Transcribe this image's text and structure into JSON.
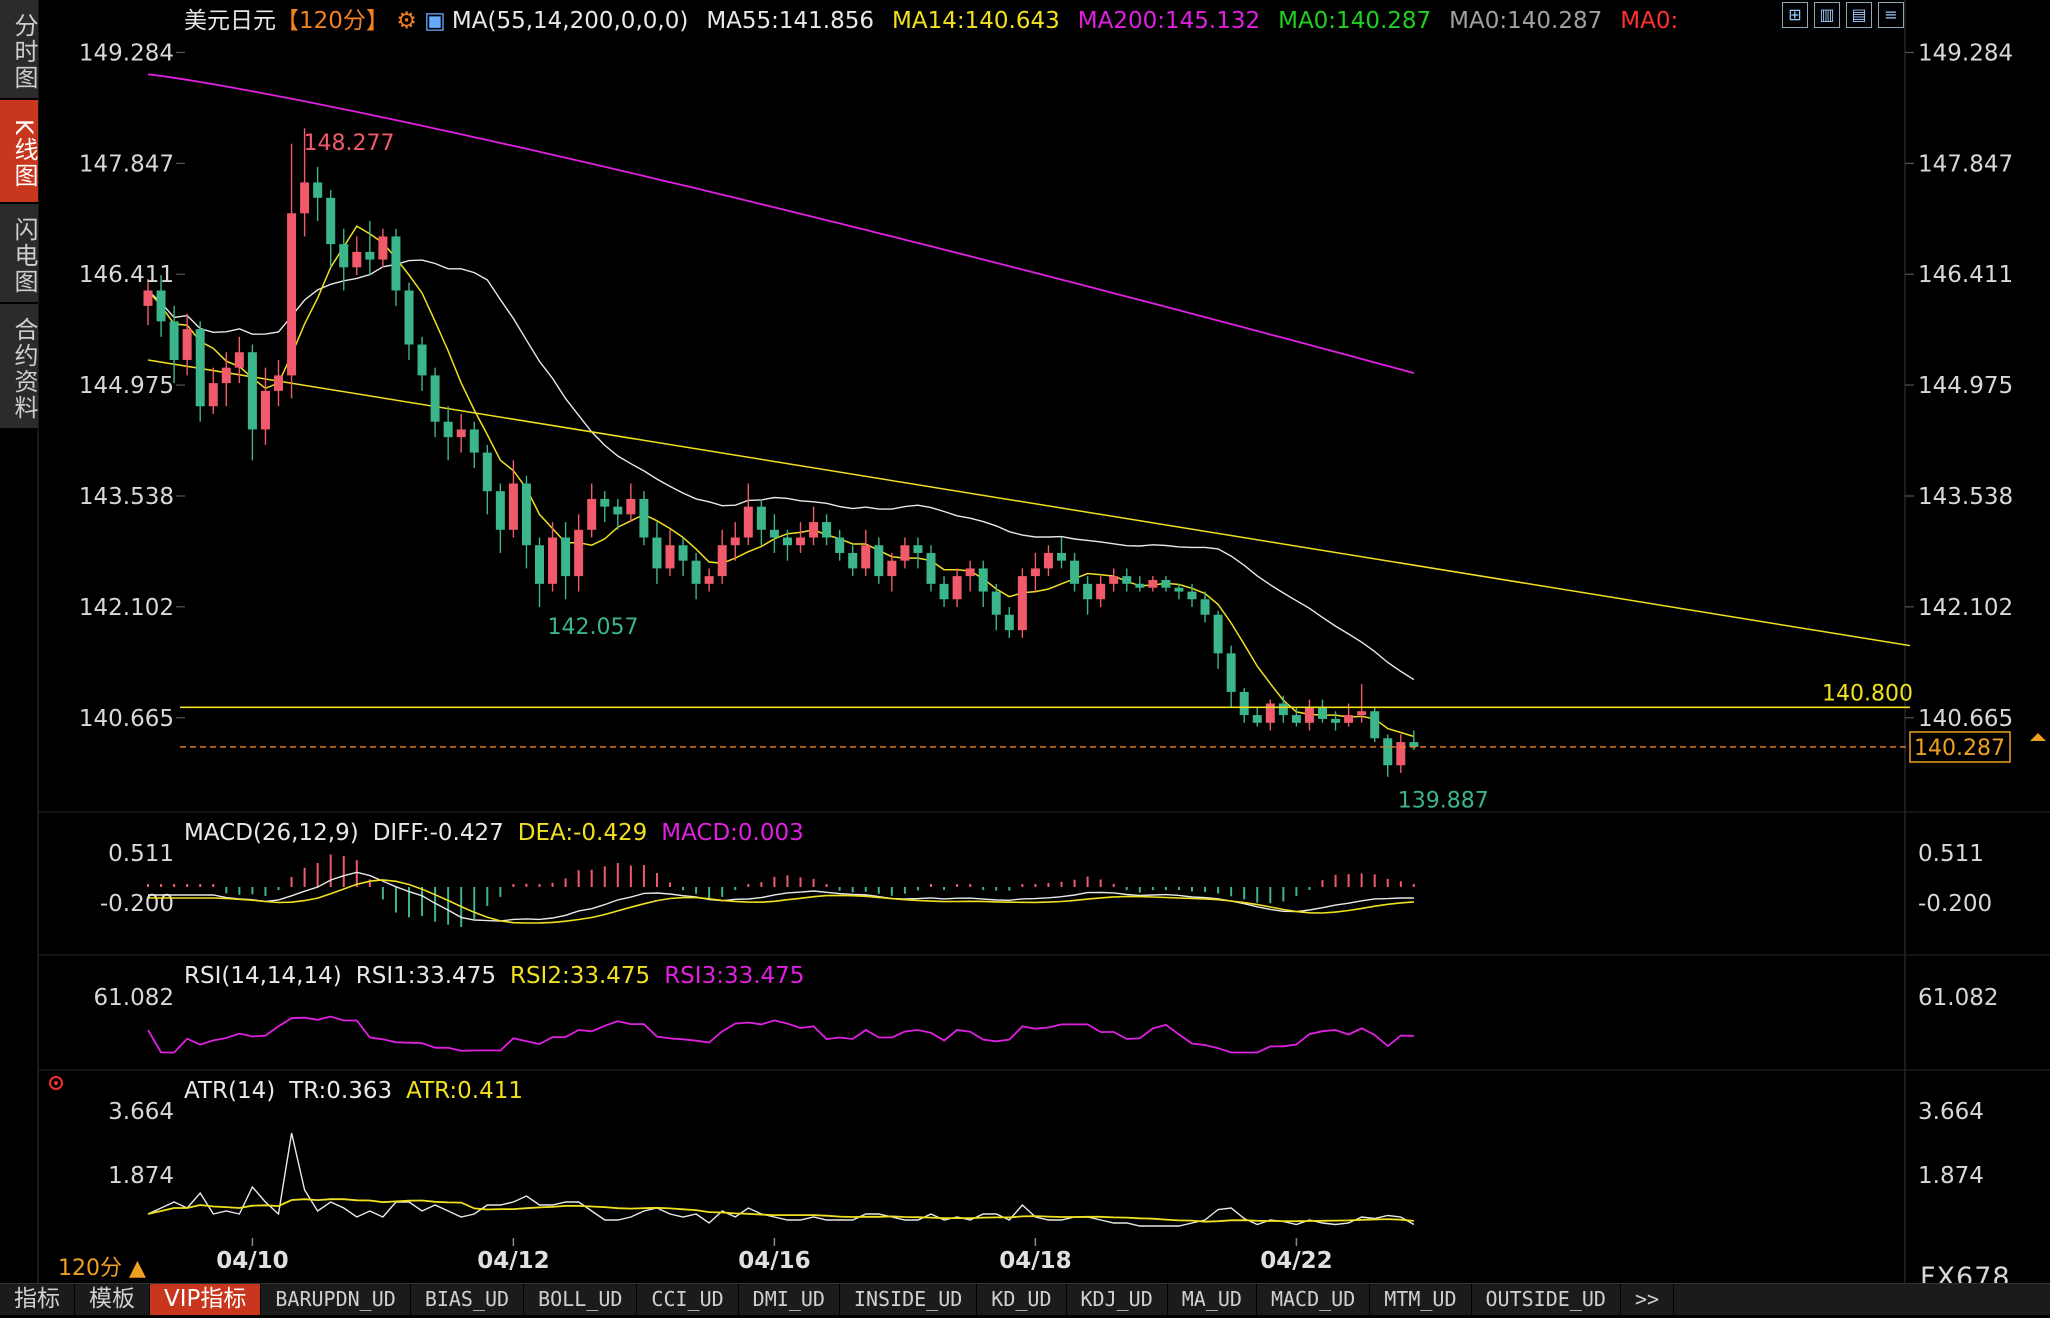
{
  "side_tabs": [
    "分时图",
    "K线图",
    "闪电图",
    "合约资料"
  ],
  "active_side_tab": 1,
  "header": {
    "symbol": "美元日元",
    "period": "【120分】",
    "settings_icon": "gear-icon",
    "ma_label": "MA(55,14,200,0,0,0)",
    "ma_items": [
      {
        "text": "MA55:141.856",
        "color": "#e8e8e8"
      },
      {
        "text": "MA14:140.643",
        "color": "#f0e020"
      },
      {
        "text": "MA200:145.132",
        "color": "#e020e0"
      },
      {
        "text": "MA0:140.287",
        "color": "#20d020"
      },
      {
        "text": "MA0:140.287",
        "color": "#a0a0a0"
      },
      {
        "text": "MA0:",
        "color": "#ff3030"
      }
    ]
  },
  "top_icons": [
    "grid-icon",
    "bar-chart-icon",
    "candle-icon",
    "menu-icon"
  ],
  "panels": {
    "macd": {
      "label": "MACD(26,12,9)",
      "items": [
        {
          "text": "DIFF:-0.427",
          "color": "#e8e8e8"
        },
        {
          "text": "DEA:-0.429",
          "color": "#f0e020"
        },
        {
          "text": "MACD:0.003",
          "color": "#e020e0"
        }
      ],
      "ticks": [
        "0.511",
        "-0.200"
      ]
    },
    "rsi": {
      "label": "RSI(14,14,14)",
      "items": [
        {
          "text": "RSI1:33.475",
          "color": "#e8e8e8"
        },
        {
          "text": "RSI2:33.475",
          "color": "#f0e020"
        },
        {
          "text": "RSI3:33.475",
          "color": "#e020e0"
        }
      ],
      "ticks": [
        "61.082"
      ]
    },
    "atr": {
      "label": "ATR(14)",
      "items": [
        {
          "text": "TR:0.363",
          "color": "#e8e8e8"
        },
        {
          "text": "ATR:0.411",
          "color": "#f0e020"
        }
      ],
      "ticks": [
        "3.664",
        "1.874"
      ]
    }
  },
  "chart_data": {
    "type": "candlestick",
    "price_ticks": [
      "149.284",
      "147.847",
      "146.411",
      "144.975",
      "143.538",
      "142.102",
      "140.665"
    ],
    "ylim": [
      139.6,
      149.6
    ],
    "x_ticks": [
      {
        "label": "04/10",
        "index": 8
      },
      {
        "label": "04/12",
        "index": 28
      },
      {
        "label": "04/16",
        "index": 48
      },
      {
        "label": "04/18",
        "index": 68
      },
      {
        "label": "04/22",
        "index": 88
      }
    ],
    "annotations": {
      "high": "148.277",
      "low_a": "142.057",
      "low_b": "139.887",
      "level_value": 140.8,
      "level_label": "140.800",
      "current_value": 140.287,
      "current_label": "140.287"
    },
    "candles": [
      [
        146.0,
        146.35,
        145.75,
        146.2
      ],
      [
        146.2,
        146.4,
        145.6,
        145.8
      ],
      [
        145.8,
        146.0,
        145.0,
        145.3
      ],
      [
        145.3,
        145.9,
        145.1,
        145.7
      ],
      [
        145.7,
        145.8,
        144.5,
        144.7
      ],
      [
        144.7,
        145.2,
        144.6,
        145.0
      ],
      [
        145.0,
        145.4,
        144.7,
        145.2
      ],
      [
        145.2,
        145.6,
        145.0,
        145.4
      ],
      [
        145.4,
        145.5,
        144.0,
        144.4
      ],
      [
        144.4,
        145.2,
        144.2,
        144.9
      ],
      [
        144.9,
        145.3,
        144.7,
        145.1
      ],
      [
        145.1,
        148.1,
        144.8,
        147.2
      ],
      [
        147.2,
        148.3,
        146.9,
        147.6
      ],
      [
        147.6,
        147.8,
        147.1,
        147.4
      ],
      [
        147.4,
        147.5,
        146.5,
        146.8
      ],
      [
        146.8,
        147.0,
        146.2,
        146.5
      ],
      [
        146.5,
        146.9,
        146.4,
        146.7
      ],
      [
        146.7,
        147.1,
        146.4,
        146.6
      ],
      [
        146.6,
        147.0,
        146.5,
        146.9
      ],
      [
        146.9,
        147.0,
        146.0,
        146.2
      ],
      [
        146.2,
        146.3,
        145.3,
        145.5
      ],
      [
        145.5,
        145.6,
        144.9,
        145.1
      ],
      [
        145.1,
        145.2,
        144.3,
        144.5
      ],
      [
        144.5,
        144.7,
        144.0,
        144.3
      ],
      [
        144.3,
        144.6,
        144.1,
        144.4
      ],
      [
        144.4,
        144.5,
        143.9,
        144.1
      ],
      [
        144.1,
        144.2,
        143.3,
        143.6
      ],
      [
        143.6,
        143.7,
        142.8,
        143.1
      ],
      [
        143.1,
        144.0,
        143.0,
        143.7
      ],
      [
        143.7,
        143.8,
        142.6,
        142.9
      ],
      [
        142.9,
        143.0,
        142.1,
        142.4
      ],
      [
        142.4,
        143.2,
        142.3,
        143.0
      ],
      [
        143.0,
        143.2,
        142.2,
        142.5
      ],
      [
        142.5,
        143.3,
        142.3,
        143.1
      ],
      [
        143.1,
        143.7,
        143.0,
        143.5
      ],
      [
        143.5,
        143.6,
        143.2,
        143.4
      ],
      [
        143.4,
        143.5,
        143.1,
        143.3
      ],
      [
        143.3,
        143.7,
        143.2,
        143.5
      ],
      [
        143.5,
        143.6,
        142.9,
        143.0
      ],
      [
        143.0,
        143.2,
        142.4,
        142.6
      ],
      [
        142.6,
        143.1,
        142.5,
        142.9
      ],
      [
        142.9,
        143.0,
        142.5,
        142.7
      ],
      [
        142.7,
        142.8,
        142.2,
        142.4
      ],
      [
        142.4,
        142.6,
        142.3,
        142.5
      ],
      [
        142.5,
        143.1,
        142.4,
        142.9
      ],
      [
        142.9,
        143.2,
        142.7,
        143.0
      ],
      [
        143.0,
        143.7,
        142.9,
        143.4
      ],
      [
        143.4,
        143.5,
        142.9,
        143.1
      ],
      [
        143.1,
        143.3,
        142.8,
        143.0
      ],
      [
        143.0,
        143.1,
        142.7,
        142.9
      ],
      [
        142.9,
        143.2,
        142.8,
        143.0
      ],
      [
        143.0,
        143.4,
        142.9,
        143.2
      ],
      [
        143.2,
        143.3,
        142.9,
        143.0
      ],
      [
        143.0,
        143.1,
        142.7,
        142.8
      ],
      [
        142.8,
        142.9,
        142.5,
        142.6
      ],
      [
        142.6,
        143.1,
        142.5,
        142.9
      ],
      [
        142.9,
        143.0,
        142.4,
        142.5
      ],
      [
        142.5,
        142.8,
        142.3,
        142.7
      ],
      [
        142.7,
        143.0,
        142.6,
        142.9
      ],
      [
        142.9,
        143.0,
        142.6,
        142.8
      ],
      [
        142.8,
        142.9,
        142.3,
        142.4
      ],
      [
        142.4,
        142.5,
        142.1,
        142.2
      ],
      [
        142.2,
        142.6,
        142.1,
        142.5
      ],
      [
        142.5,
        142.7,
        142.3,
        142.6
      ],
      [
        142.6,
        142.7,
        142.1,
        142.3
      ],
      [
        142.3,
        142.4,
        141.8,
        142.0
      ],
      [
        142.0,
        142.1,
        141.7,
        141.8
      ],
      [
        141.8,
        142.6,
        141.7,
        142.5
      ],
      [
        142.5,
        142.8,
        142.3,
        142.6
      ],
      [
        142.6,
        142.9,
        142.5,
        142.8
      ],
      [
        142.8,
        143.0,
        142.6,
        142.7
      ],
      [
        142.7,
        142.8,
        142.3,
        142.4
      ],
      [
        142.4,
        142.5,
        142.0,
        142.2
      ],
      [
        142.2,
        142.5,
        142.1,
        142.4
      ],
      [
        142.4,
        142.6,
        142.3,
        142.5
      ],
      [
        142.5,
        142.6,
        142.3,
        142.4
      ],
      [
        142.4,
        142.5,
        142.3,
        142.35
      ],
      [
        142.35,
        142.5,
        142.3,
        142.45
      ],
      [
        142.45,
        142.5,
        142.3,
        142.35
      ],
      [
        142.35,
        142.4,
        142.2,
        142.3
      ],
      [
        142.3,
        142.4,
        142.1,
        142.2
      ],
      [
        142.2,
        142.3,
        141.9,
        142.0
      ],
      [
        142.0,
        142.05,
        141.3,
        141.5
      ],
      [
        141.5,
        141.6,
        140.8,
        141.0
      ],
      [
        141.0,
        141.05,
        140.6,
        140.7
      ],
      [
        140.7,
        140.8,
        140.55,
        140.6
      ],
      [
        140.6,
        140.9,
        140.5,
        140.85
      ],
      [
        140.85,
        140.95,
        140.6,
        140.7
      ],
      [
        140.7,
        140.8,
        140.55,
        140.6
      ],
      [
        140.6,
        140.9,
        140.5,
        140.8
      ],
      [
        140.8,
        140.9,
        140.6,
        140.65
      ],
      [
        140.65,
        140.75,
        140.5,
        140.6
      ],
      [
        140.6,
        140.85,
        140.55,
        140.7
      ],
      [
        140.7,
        141.1,
        140.6,
        140.75
      ],
      [
        140.75,
        140.8,
        140.35,
        140.4
      ],
      [
        140.4,
        140.45,
        139.9,
        140.05
      ],
      [
        140.05,
        140.45,
        139.95,
        140.35
      ],
      [
        140.35,
        140.5,
        140.25,
        140.287
      ]
    ]
  }
}
